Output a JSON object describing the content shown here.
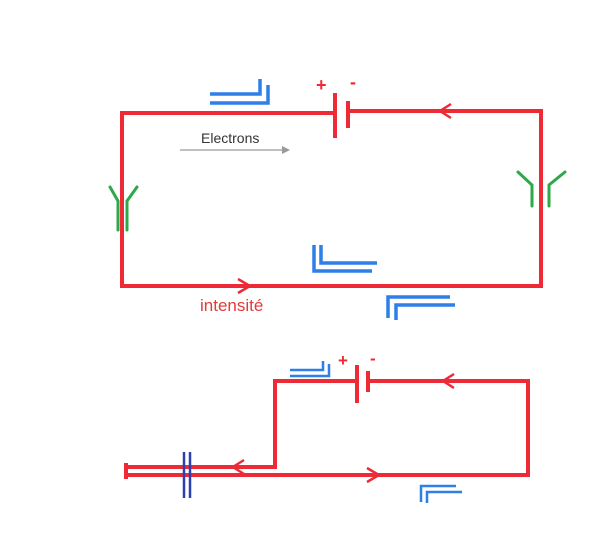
{
  "labels": {
    "electrons": "Electrons",
    "intensity": "intensité",
    "plus_top": "+",
    "minus_top": "-",
    "plus_bottom": "+",
    "minus_bottom": "-"
  },
  "colors": {
    "wire": "#ee2a36",
    "charge_marker": "#2f7fe8",
    "electrode": "#2fa84a",
    "dark_electrode": "#2a3fb0",
    "electron_arrow": "#9a9a9a",
    "electron_text": "#333333",
    "intensity_text": "#e33a3a"
  }
}
